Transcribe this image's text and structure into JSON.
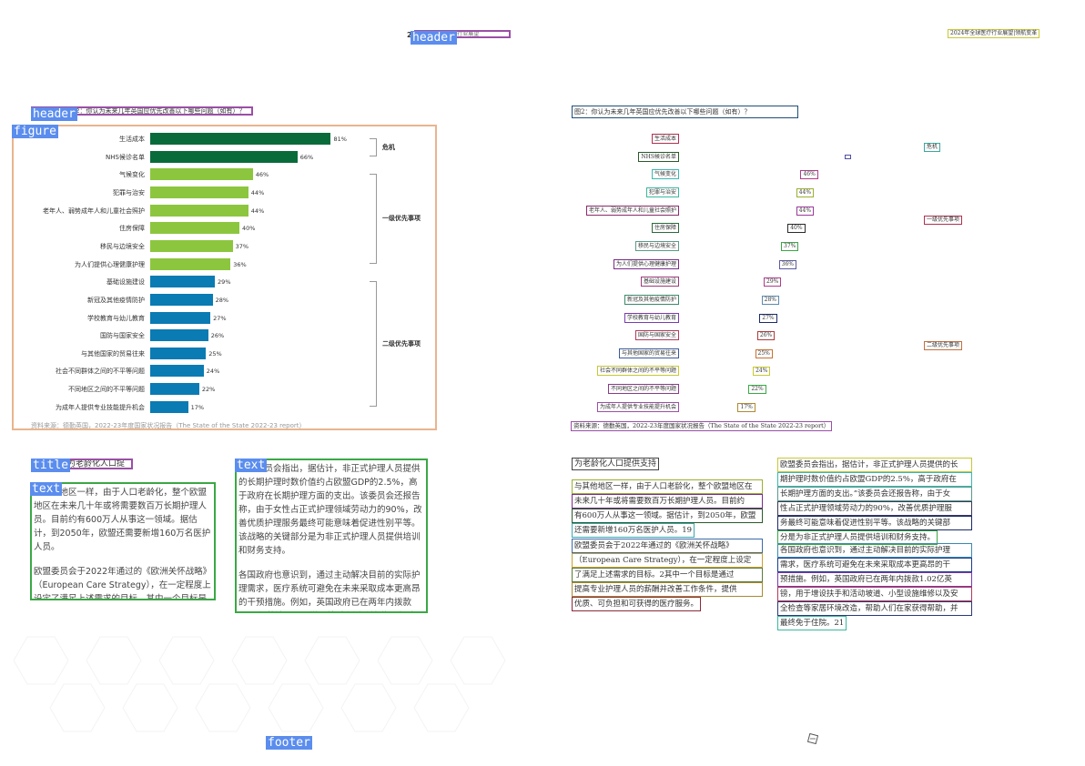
{
  "left": {
    "page_no": "24",
    "header_tag": "header",
    "section_tag": "header",
    "figure_tag": "figure",
    "title_tag": "title",
    "text_tag": "text",
    "text2_tag": "text",
    "footer_tag": "footer",
    "top_header": "2024年全球医疗行业展望",
    "figure_caption": "图2：你认为未来几年英国应优先改善以下哪些问题（如有）？",
    "source": "资料来源：德勤英国，2022-23年度国家状况报告（The State of the State 2022-23 report）",
    "section_title": "为老龄化人口提供支持",
    "col1": [
      "与其他地区一样，由于人口老龄化，整个欧盟地区在未来几十年或将需要数百万长期护理人员。目前约有600万人从事这一领域。据估计，到2050年，欧盟还需要新增160万名医护人员。",
      "欧盟委员会于2022年通过的《欧洲关怀战略》（European Care Strategy），在一定程度上设定了满足上述需求的目标。其中一个目标是通过提高专业护理人员的薪酬并改善工作条件，提供优质、可负担和可获得的医疗服务。"
    ],
    "col2": [
      "欧盟委员会指出，据估计，非正式护理人员提供的长期护理时数价值约占欧盟GDP的2.5%，高于政府在长期护理方面的支出。该委员会还报告称，由于女性占正式护理领域劳动力的90%，改善优质护理服务最终可能意味着促进性别平等。该战略的关键部分是为非正式护理人员提供培训和财务支持。",
      "各国政府也意识到，通过主动解决目前的实际护理需求，医疗系统可避免在未来采取成本更高昂的干预措施。例如，英国政府已在两年内拨款1.02亿英镑，用于增设扶手和活动坡道、小型设施维修以及安全检查等家居环境改造，帮助人们在家获得帮助，并最终免于住院。"
    ]
  },
  "chart_data": {
    "type": "bar",
    "orientation": "horizontal",
    "categories": [
      "生活成本",
      "NHS候诊名单",
      "气候变化",
      "犯罪与治安",
      "老年人、弱势成年人和儿童社会照护",
      "住房保障",
      "移民与边境安全",
      "为人们提供心理健康护理",
      "基础设施建设",
      "新冠及其他疫情防护",
      "学校教育与幼儿教育",
      "国防与国家安全",
      "与其他国家的贸易往来",
      "社会不同群体之间的不平等问题",
      "不同地区之间的不平等问题",
      "为成年人提供专业技能提升机会"
    ],
    "values": [
      81,
      66,
      46,
      44,
      44,
      40,
      37,
      36,
      29,
      28,
      27,
      26,
      25,
      24,
      22,
      17
    ],
    "value_labels": [
      "81%",
      "66%",
      "46%",
      "44%",
      "44%",
      "40%",
      "37%",
      "36%",
      "29%",
      "28%",
      "27%",
      "26%",
      "25%",
      "24%",
      "22%",
      "17%"
    ],
    "groups": [
      {
        "name": "危机",
        "from": 0,
        "to": 1,
        "color": "#0a6b3a"
      },
      {
        "name": "一级优先事项",
        "from": 2,
        "to": 7,
        "color": "#8cc63e"
      },
      {
        "name": "二级优先事项",
        "from": 8,
        "to": 15,
        "color": "#0a7bb3"
      }
    ],
    "xlim": [
      0,
      100
    ]
  },
  "right": {
    "top_header": "2024年全球医疗行业展望|领航变革",
    "figure_caption": "图2：你认为未来几年英国应优先改善以下哪些问题（如有）？",
    "group_labels": [
      "危机",
      "一级优先事项",
      "二级优先事项"
    ],
    "source": "资料来源：德勤英国，2022-23年度国家状况报告（The State of the State 2022-23 report）",
    "section_title": "为老龄化人口提供支持",
    "col1_lines": [
      "与其他地区一样，由于人口老龄化，整个欧盟地区在",
      "未来几十年或将需要数百万长期护理人员。目前约",
      "有600万人从事这一领域。据估计，到2050年，欧盟",
      "还需要新增160万名医护人员。19"
    ],
    "col1b_lines": [
      "欧盟委员会于2022年通过的《欧洲关怀战略》",
      "（European Care Strategy），在一定程度上设定",
      "了满足上述需求的目标。2其中一个目标是通过",
      "提高专业护理人员的薪酬并改善工作条件，提供",
      "优质、可负担和可获得的医疗服务。"
    ],
    "col2_lines": [
      "欧盟委员会指出，据估计，非正式护理人员提供的长",
      "期护理时数价值约占欧盟GDP的2.5%，高于政府在",
      "长期护理方面的支出。”该委员会还报告称，由于女",
      "性占正式护理领域劳动力的90%，改善优质护理服",
      "务最终可能意味着促进性别平等。该战略的关键部",
      "分是为非正式护理人员提供培训和财务支持。"
    ],
    "col2b_lines": [
      "各国政府也意识到，通过主动解决目前的实际护理",
      "需求，医疗系统可避免在未来采取成本更高昂的干",
      "预措施。例如，英国政府已在两年内拨款1.02亿英",
      "镑，用于增设扶手和活动坡道、小型设施维修以及安",
      "全检查等家居环境改造，帮助人们在家获得帮助，并",
      "最终免于住院。21"
    ]
  }
}
